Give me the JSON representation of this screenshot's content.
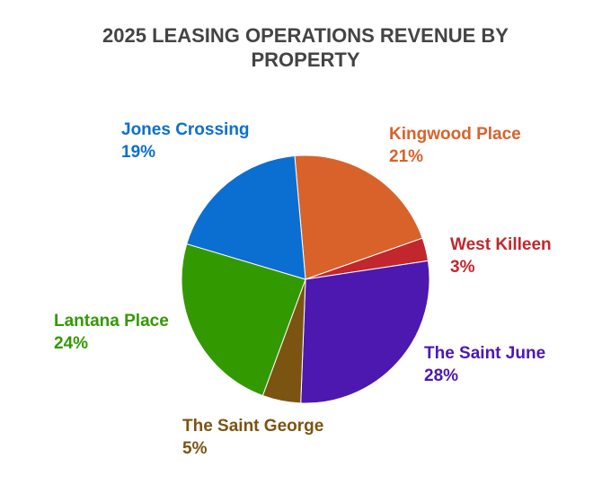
{
  "chart_data": {
    "type": "pie",
    "title": "2025 LEASING OPERATIONS REVENUE BY PROPERTY",
    "start_angle_deg": -5,
    "direction": "clockwise",
    "slices": [
      {
        "label": "Kingwood Place",
        "percent_label": "21%",
        "value": 21,
        "color": "#d9622b"
      },
      {
        "label": "West Killeen",
        "percent_label": "3%",
        "value": 3,
        "color": "#c1272d"
      },
      {
        "label": "The Saint June",
        "percent_label": "28%",
        "value": 28,
        "color": "#4c18b0"
      },
      {
        "label": "The Saint George",
        "percent_label": "5%",
        "value": 5,
        "color": "#7b5411"
      },
      {
        "label": "Lantana Place",
        "percent_label": "24%",
        "value": 24,
        "color": "#339900"
      },
      {
        "label": "Jones Crossing",
        "percent_label": "19%",
        "value": 19,
        "color": "#0b6fd1"
      }
    ]
  }
}
